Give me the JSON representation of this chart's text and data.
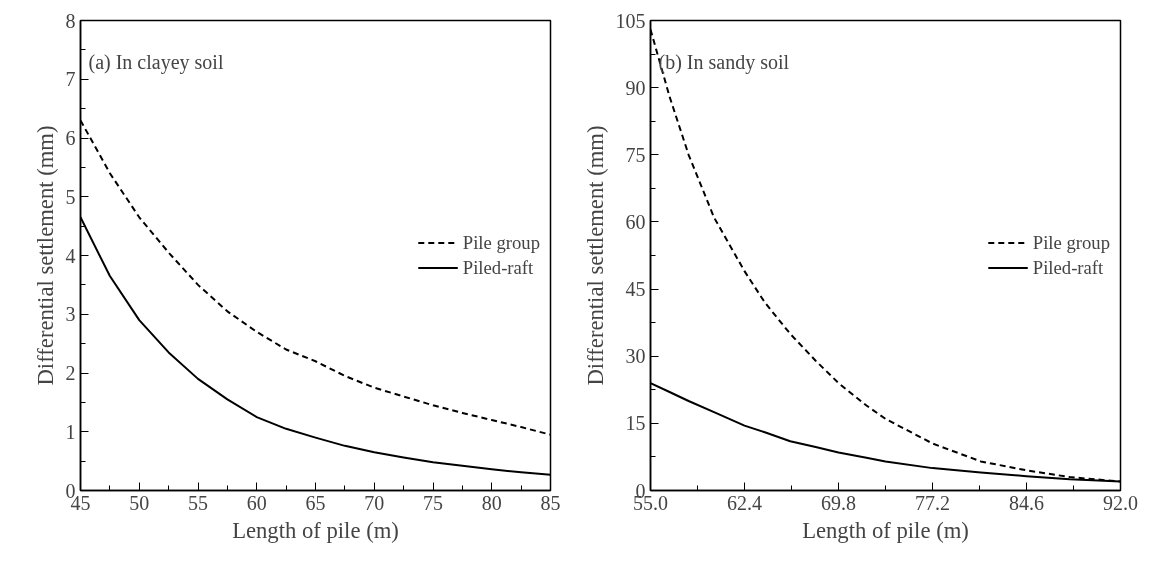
{
  "chart_data": [
    {
      "type": "line",
      "title": "(a) In clayey soil",
      "xlabel": "Length of pile (m)",
      "ylabel": "Differential settlement (mm)",
      "xlim": [
        45,
        85
      ],
      "ylim": [
        0,
        8
      ],
      "xticks": [
        45,
        50,
        55,
        60,
        65,
        70,
        75,
        80,
        85
      ],
      "yticks": [
        0,
        1,
        2,
        3,
        4,
        5,
        6,
        7,
        8
      ],
      "grid": false,
      "legend": "right",
      "x": [
        45,
        47.5,
        50,
        52.5,
        55,
        57.5,
        60,
        62.5,
        65,
        67.5,
        70,
        72.5,
        75,
        77.5,
        80,
        82.5,
        85
      ],
      "series": [
        {
          "name": "Pile group",
          "color": "#000000",
          "line_style": "dashed",
          "values": [
            6.3,
            5.4,
            4.65,
            4.05,
            3.5,
            3.05,
            2.7,
            2.4,
            2.2,
            1.95,
            1.75,
            1.6,
            1.45,
            1.32,
            1.2,
            1.08,
            0.95
          ]
        },
        {
          "name": "Piled-raft",
          "color": "#000000",
          "line_style": "solid",
          "values": [
            4.65,
            3.65,
            2.9,
            2.35,
            1.9,
            1.55,
            1.25,
            1.05,
            0.9,
            0.76,
            0.65,
            0.56,
            0.48,
            0.42,
            0.36,
            0.31,
            0.27
          ]
        }
      ]
    },
    {
      "type": "line",
      "title": "(b) In sandy soil",
      "xlabel": "Length of pile (m)",
      "ylabel": "Differential settlement (mm)",
      "xlim": [
        55,
        92
      ],
      "ylim": [
        0,
        105
      ],
      "xticks": [
        {
          "value": 55,
          "label": "55.0"
        },
        62.4,
        69.8,
        77.2,
        84.6,
        {
          "value": 92,
          "label": "92.0"
        }
      ],
      "yticks": [
        0,
        15,
        30,
        45,
        60,
        75,
        90,
        105
      ],
      "grid": false,
      "legend": "right",
      "x": [
        55,
        56.5,
        58,
        60,
        62.4,
        64,
        66,
        68,
        69.8,
        72,
        73.5,
        77.2,
        81,
        84.6,
        88,
        92
      ],
      "series": [
        {
          "name": "Pile group",
          "color": "#000000",
          "line_style": "dashed",
          "values": [
            103,
            88,
            75,
            61,
            49,
            42,
            35,
            29,
            24,
            19,
            16,
            10.5,
            6.5,
            4.5,
            3,
            2
          ]
        },
        {
          "name": "Piled-raft",
          "color": "#000000",
          "line_style": "solid",
          "values": [
            24,
            22,
            20,
            17.5,
            14.5,
            13,
            11,
            9.7,
            8.5,
            7.3,
            6.5,
            5,
            4,
            3.2,
            2.5,
            2
          ]
        }
      ]
    }
  ]
}
